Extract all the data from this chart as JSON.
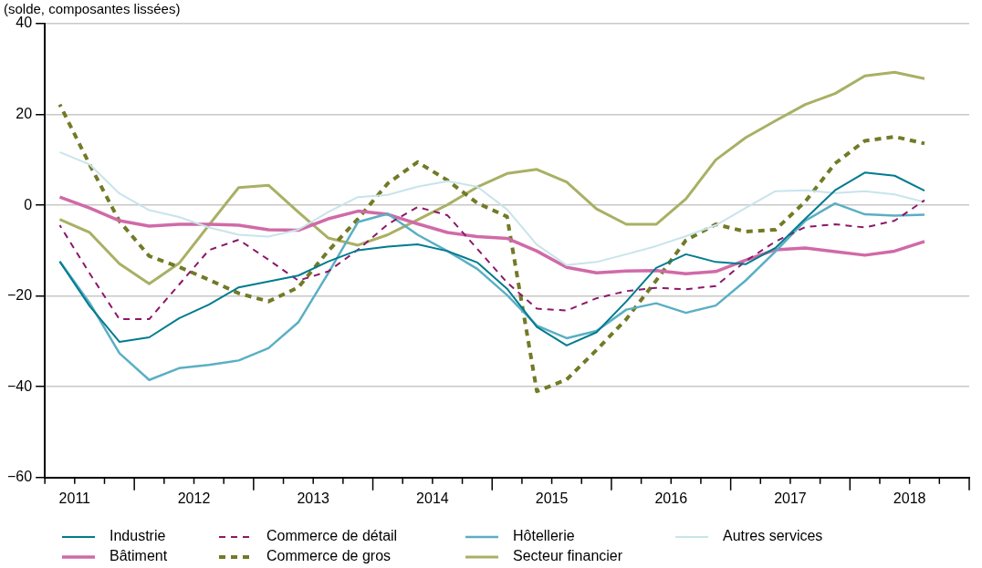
{
  "chart_data": {
    "type": "line",
    "subtitle": "(solde, composantes lissées)",
    "x": [
      2011.375,
      2011.625,
      2011.875,
      2012.125,
      2012.375,
      2012.625,
      2012.875,
      2013.125,
      2013.375,
      2013.625,
      2013.875,
      2014.125,
      2014.375,
      2014.625,
      2014.875,
      2015.125,
      2015.375,
      2015.625,
      2015.875,
      2016.125,
      2016.375,
      2016.625,
      2016.875,
      2017.125,
      2017.375,
      2017.625,
      2017.875,
      2018.125,
      2018.375,
      2018.625
    ],
    "xlim": [
      2011.25,
      2019
    ],
    "xticks": [
      {
        "value": 2011.25,
        "label": null
      },
      {
        "value": 2011.5,
        "label": "2011"
      },
      {
        "value": 2011.75,
        "label": null
      },
      {
        "value": 2012,
        "label": null
      },
      {
        "value": 2012.25,
        "label": null
      },
      {
        "value": 2012.5,
        "label": "2012"
      },
      {
        "value": 2012.75,
        "label": null
      },
      {
        "value": 2013,
        "label": null
      },
      {
        "value": 2013.25,
        "label": null
      },
      {
        "value": 2013.5,
        "label": "2013"
      },
      {
        "value": 2013.75,
        "label": null
      },
      {
        "value": 2014,
        "label": null
      },
      {
        "value": 2014.25,
        "label": null
      },
      {
        "value": 2014.5,
        "label": "2014"
      },
      {
        "value": 2014.75,
        "label": null
      },
      {
        "value": 2015,
        "label": null
      },
      {
        "value": 2015.25,
        "label": null
      },
      {
        "value": 2015.5,
        "label": "2015"
      },
      {
        "value": 2015.75,
        "label": null
      },
      {
        "value": 2016,
        "label": null
      },
      {
        "value": 2016.25,
        "label": null
      },
      {
        "value": 2016.5,
        "label": "2016"
      },
      {
        "value": 2016.75,
        "label": null
      },
      {
        "value": 2017,
        "label": null
      },
      {
        "value": 2017.25,
        "label": null
      },
      {
        "value": 2017.5,
        "label": "2017"
      },
      {
        "value": 2017.75,
        "label": null
      },
      {
        "value": 2018,
        "label": null
      },
      {
        "value": 2018.25,
        "label": null
      },
      {
        "value": 2018.5,
        "label": "2018"
      },
      {
        "value": 2018.75,
        "label": null
      },
      {
        "value": 2019,
        "label": null
      }
    ],
    "ylim": [
      -60,
      40
    ],
    "yticks": [
      {
        "value": -60,
        "label": "−60"
      },
      {
        "value": -40,
        "label": "−40"
      },
      {
        "value": -20,
        "label": "−20"
      },
      0,
      20,
      40
    ],
    "grid": "y",
    "legend": "bottom",
    "series": [
      {
        "name": "Industrie",
        "color": "#007b8f",
        "line_style": "solid",
        "values": [
          -12.4,
          -22.2,
          -30.1,
          -29.1,
          -24.9,
          -21.9,
          -18.1,
          -16.8,
          -15.5,
          -12.4,
          -9.9,
          -9.1,
          -8.6,
          -10.1,
          -12.6,
          -18.4,
          -26.8,
          -30.9,
          -28.0,
          -21.2,
          -13.8,
          -10.8,
          -12.5,
          -13.0,
          -9.4,
          -3.0,
          3.3,
          7.2,
          6.5,
          3.2
        ]
      },
      {
        "name": "Commerce de détail",
        "color": "#8c1868",
        "line_style": "dashed",
        "values": [
          -4.4,
          -15.0,
          -25.1,
          -25.1,
          -17.5,
          -9.9,
          -7.6,
          -12.0,
          -16.6,
          -14.6,
          -9.8,
          -4.2,
          -0.4,
          -2.2,
          -9.6,
          -17.0,
          -22.8,
          -23.2,
          -20.5,
          -18.9,
          -18.2,
          -18.5,
          -17.8,
          -12.3,
          -8.0,
          -4.8,
          -4.2,
          -4.9,
          -3.4,
          1.1
        ]
      },
      {
        "name": "Hôtellerie",
        "color": "#5bafc4",
        "line_style": "solid",
        "values": [
          -12.4,
          -21.5,
          -32.6,
          -38.5,
          -35.9,
          -35.2,
          -34.2,
          -31.5,
          -25.8,
          -15.0,
          -3.7,
          -1.9,
          -6.5,
          -10.1,
          -14.0,
          -19.8,
          -26.5,
          -29.3,
          -27.7,
          -23.0,
          -21.6,
          -23.7,
          -22.1,
          -16.6,
          -10.2,
          -3.4,
          0.4,
          -2.0,
          -2.3,
          -2.1
        ]
      },
      {
        "name": "Autres services",
        "color": "#c8e4eb",
        "line_style": "solid",
        "values": [
          11.7,
          9.0,
          2.6,
          -1.1,
          -2.6,
          -4.9,
          -6.5,
          -6.9,
          -5.4,
          -1.5,
          1.8,
          2.3,
          4.1,
          5.3,
          4.1,
          -0.9,
          -8.7,
          -13.2,
          -12.5,
          -10.8,
          -9.0,
          -6.8,
          -4.4,
          -0.6,
          3.1,
          3.3,
          2.7,
          3.1,
          2.4,
          0.7
        ]
      },
      {
        "name": "Bâtiment",
        "color": "#d06aa8",
        "line_style": "solid",
        "values": [
          1.8,
          -0.6,
          -3.4,
          -4.6,
          -4.2,
          -4.2,
          -4.4,
          -5.4,
          -5.5,
          -3.0,
          -1.3,
          -2.0,
          -4.1,
          -6.0,
          -6.9,
          -7.3,
          -10.1,
          -13.7,
          -14.9,
          -14.5,
          -14.4,
          -15.1,
          -14.6,
          -12.1,
          -9.8,
          -9.4,
          -10.2,
          -11.0,
          -10.1,
          -8.0
        ]
      },
      {
        "name": "Commerce de gros",
        "color": "#737a26",
        "line_style": "dashed",
        "values": [
          22.2,
          9.0,
          -3.5,
          -11.2,
          -13.6,
          -16.4,
          -19.4,
          -21.2,
          -18.1,
          -10.1,
          -3.0,
          4.8,
          9.5,
          5.5,
          0.5,
          -2.5,
          -41.0,
          -38.4,
          -31.9,
          -25.1,
          -16.6,
          -7.7,
          -4.2,
          -5.8,
          -5.4,
          0.8,
          9.2,
          14.2,
          15.1,
          13.6
        ]
      },
      {
        "name": "Secteur financier",
        "color": "#a9b064",
        "line_style": "solid",
        "values": [
          -3.1,
          -6.0,
          -12.9,
          -17.3,
          -12.8,
          -4.4,
          3.9,
          4.4,
          -1.5,
          -7.2,
          -8.8,
          -6.5,
          -3.2,
          0.1,
          4.0,
          7.0,
          7.9,
          5.1,
          -0.8,
          -4.2,
          -4.2,
          1.4,
          10.0,
          14.9,
          18.6,
          22.2,
          24.6,
          28.5,
          29.3,
          27.9
        ]
      }
    ]
  }
}
